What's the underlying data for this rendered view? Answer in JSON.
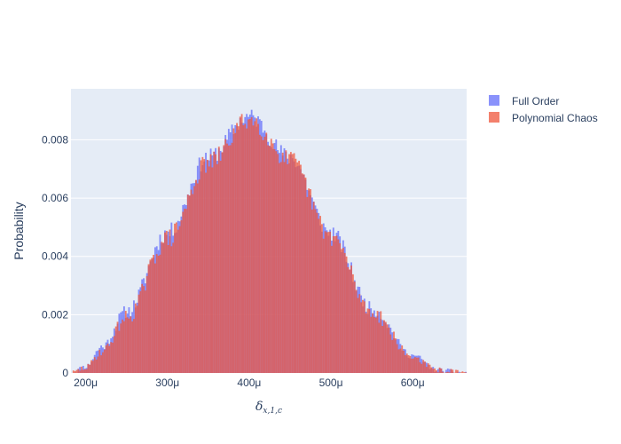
{
  "chart_data": {
    "type": "histogram",
    "title": "",
    "ylabel": "Probability",
    "xlabel": {
      "symbol": "δ",
      "subscript": "x,1,c"
    },
    "x_tick_labels": [
      "200μ",
      "300μ",
      "400μ",
      "500μ",
      "600μ"
    ],
    "x_tick_values": [
      0.0002,
      0.0003,
      0.0004,
      0.0005,
      0.0006
    ],
    "y_tick_labels": [
      "0",
      "0.002",
      "0.004",
      "0.006",
      "0.008"
    ],
    "y_tick_values": [
      0,
      0.002,
      0.004,
      0.006,
      0.008
    ],
    "xlim": [
      0.000182,
      0.000666
    ],
    "ylim": [
      0,
      0.00975
    ],
    "bin_width": 2e-06,
    "overlay": true,
    "opacity": 0.75,
    "plot_bgcolor": "#e5ecf6",
    "grid": true,
    "legend_position": "top-right",
    "series": [
      {
        "name": "Full Order",
        "color": "#636efa",
        "profile": [
          [
            0.000182,
            0.0
          ],
          [
            0.0002,
            0.00022
          ],
          [
            0.00022,
            0.0009
          ],
          [
            0.00025,
            0.0021
          ],
          [
            0.0003,
            0.0048
          ],
          [
            0.00035,
            0.0074
          ],
          [
            0.0004,
            0.0088
          ],
          [
            0.00045,
            0.0074
          ],
          [
            0.0005,
            0.0048
          ],
          [
            0.00055,
            0.0022
          ],
          [
            0.0006,
            0.0006
          ],
          [
            0.00063,
            0.0001
          ],
          [
            0.000666,
            0.0
          ]
        ],
        "noise": 0.0003,
        "seed": 11
      },
      {
        "name": "Polynomial Chaos",
        "color": "#ef553b",
        "profile": [
          [
            0.000182,
            0.0
          ],
          [
            0.0002,
            0.00018
          ],
          [
            0.00022,
            0.00075
          ],
          [
            0.00025,
            0.0019
          ],
          [
            0.0003,
            0.0046
          ],
          [
            0.00035,
            0.0072
          ],
          [
            0.0004,
            0.0087
          ],
          [
            0.00045,
            0.0073
          ],
          [
            0.0005,
            0.0047
          ],
          [
            0.00055,
            0.0021
          ],
          [
            0.0006,
            0.00055
          ],
          [
            0.00063,
            0.0001
          ],
          [
            0.000666,
            0.0
          ]
        ],
        "noise": 0.00035,
        "seed": 29
      }
    ]
  }
}
